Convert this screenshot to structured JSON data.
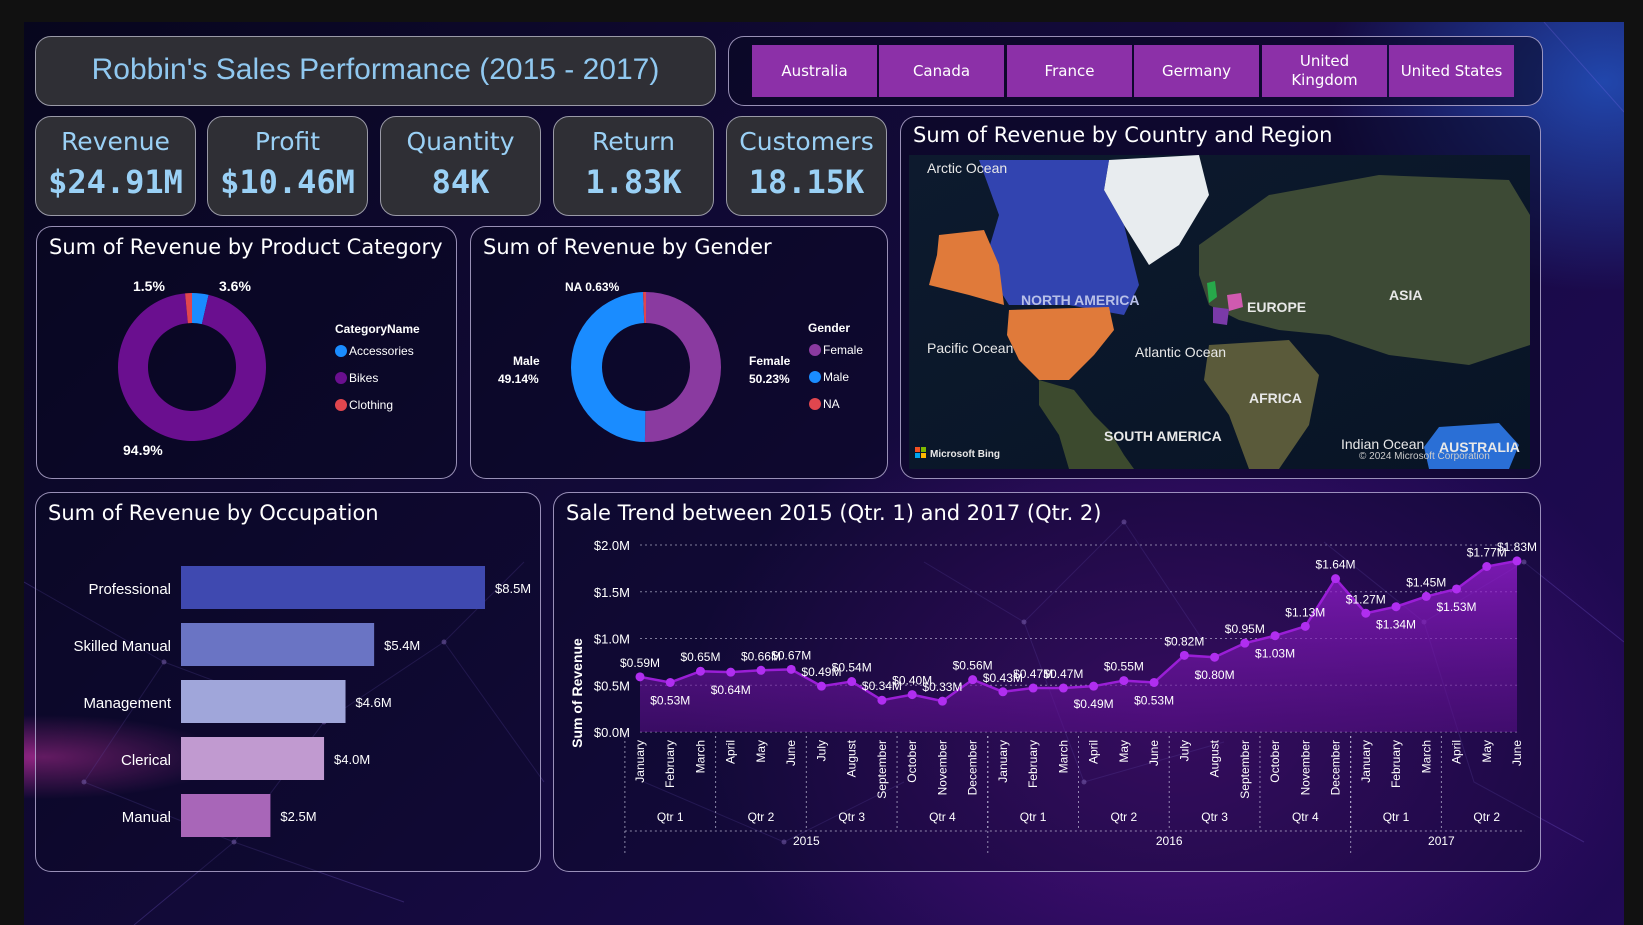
{
  "header": {
    "title": "Robbin's Sales Performance (2015 - 2017)"
  },
  "slicer": {
    "items": [
      "Australia",
      "Canada",
      "France",
      "Germany",
      "United Kingdom",
      "United States"
    ]
  },
  "kpis": [
    {
      "label": "Revenue",
      "value": "$24.91M"
    },
    {
      "label": "Profit",
      "value": "$10.46M"
    },
    {
      "label": "Quantity",
      "value": "84K"
    },
    {
      "label": "Return",
      "value": "1.83K"
    },
    {
      "label": "Customers",
      "value": "18.15K"
    }
  ],
  "product_category": {
    "title": "Sum of Revenue by Product Category",
    "legend_title": "CategoryName",
    "colors": {
      "Accessories": "#1a8cff",
      "Bikes": "#6a0f8f",
      "Clothing": "#e0464e"
    }
  },
  "gender": {
    "title": "Sum of Revenue by Gender",
    "legend_title": "Gender",
    "colors": {
      "Female": "#8a3aa0",
      "Male": "#1a8cff",
      "NA": "#e0464e"
    }
  },
  "map": {
    "title": "Sum of Revenue by Country and Region",
    "labels": {
      "arctic": "Arctic Ocean",
      "north_america": "NORTH AMERICA",
      "europe": "EUROPE",
      "asia": "ASIA",
      "pacific": "Pacific Ocean",
      "atlantic": "Atlantic Ocean",
      "africa": "AFRICA",
      "south_america": "SOUTH AMERICA",
      "indian": "Indian Ocean",
      "australia": "AUSTRALIA"
    },
    "attribution": "Microsoft Bing",
    "copyright": "© 2024 Microsoft Corporation"
  },
  "occupation": {
    "title": "Sum of Revenue by Occupation"
  },
  "trend": {
    "title": "Sale Trend between 2015 (Qtr. 1) and 2017 (Qtr. 2)"
  },
  "chart_data": [
    {
      "type": "pie",
      "variant": "donut",
      "categories": [
        "Accessories",
        "Bikes",
        "Clothing"
      ],
      "values": [
        3.6,
        94.9,
        1.5
      ],
      "data_labels": [
        "3.6%",
        "94.9%",
        "1.5%"
      ],
      "title": "Sum of Revenue by Product Category",
      "legend": "right"
    },
    {
      "type": "pie",
      "variant": "donut",
      "categories": [
        "Female",
        "Male",
        "NA"
      ],
      "values": [
        50.23,
        49.14,
        0.63
      ],
      "data_labels": [
        "50.23%",
        "49.14%",
        "0.63%"
      ],
      "title": "Sum of Revenue by Gender",
      "legend": "right"
    },
    {
      "type": "bar",
      "orientation": "horizontal",
      "categories": [
        "Professional",
        "Skilled Manual",
        "Management",
        "Clerical",
        "Manual"
      ],
      "values": [
        8.5,
        5.4,
        4.6,
        4.0,
        2.5
      ],
      "data_labels": [
        "$8.5M",
        "$5.4M",
        "$4.6M",
        "$4.0M",
        "$2.5M"
      ],
      "colors": [
        "#3f49b0",
        "#6a74c4",
        "#a0a6da",
        "#c19ad0",
        "#a866b8"
      ],
      "title": "Sum of Revenue by Occupation"
    },
    {
      "type": "area",
      "title": "Sale Trend between 2015 (Qtr. 1) and 2017 (Qtr. 2)",
      "ylabel": "Sum of Revenue",
      "ylim": [
        0,
        2.0
      ],
      "y_ticks": [
        "$0.0M",
        "$0.5M",
        "$1.0M",
        "$1.5M",
        "$2.0M"
      ],
      "grid": true,
      "x": [
        "January",
        "February",
        "March",
        "April",
        "May",
        "June",
        "July",
        "August",
        "September",
        "October",
        "November",
        "December",
        "January",
        "February",
        "March",
        "April",
        "May",
        "June",
        "July",
        "August",
        "September",
        "October",
        "November",
        "December",
        "January",
        "February",
        "March",
        "April",
        "May",
        "June"
      ],
      "quarters": [
        "Qtr 1",
        "Qtr 2",
        "Qtr 3",
        "Qtr 4",
        "Qtr 1",
        "Qtr 2",
        "Qtr 3",
        "Qtr 4",
        "Qtr 1",
        "Qtr 2"
      ],
      "years": [
        "2015",
        "2016",
        "2017"
      ],
      "values": [
        0.59,
        0.53,
        0.65,
        0.64,
        0.66,
        0.67,
        0.49,
        0.54,
        0.34,
        0.4,
        0.33,
        0.56,
        0.43,
        0.47,
        0.47,
        0.49,
        0.55,
        0.53,
        0.82,
        0.8,
        0.95,
        1.03,
        1.13,
        1.64,
        1.27,
        1.34,
        1.45,
        1.53,
        1.77,
        1.83
      ],
      "data_labels": [
        "$0.59M",
        "$0.53M",
        "$0.65M",
        "$0.64M",
        "$0.66M",
        "$0.67M",
        "$0.49M",
        "$0.54M",
        "$0.34M",
        "$0.40M",
        "$0.33M",
        "$0.56M",
        "$0.43M",
        "$0.47M",
        "$0.47M",
        "$0.49M",
        "$0.55M",
        "$0.53M",
        "$0.82M",
        "$0.80M",
        "$0.95M",
        "$1.03M",
        "$1.13M",
        "$1.64M",
        "$1.27M",
        "$1.34M",
        "$1.45M",
        "$1.53M",
        "$1.77M",
        "$1.83M"
      ],
      "color": "#9a1ed6"
    }
  ]
}
